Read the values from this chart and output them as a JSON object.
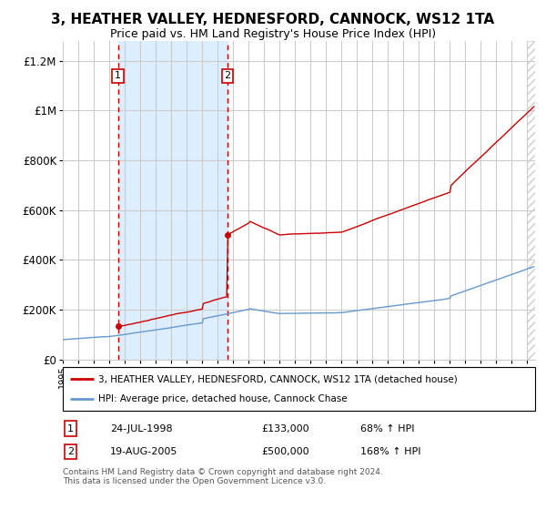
{
  "title": "3, HEATHER VALLEY, HEDNESFORD, CANNOCK, WS12 1TA",
  "subtitle": "Price paid vs. HM Land Registry's House Price Index (HPI)",
  "red_label": "3, HEATHER VALLEY, HEDNESFORD, CANNOCK, WS12 1TA (detached house)",
  "blue_label": "HPI: Average price, detached house, Cannock Chase",
  "sale1_date": "24-JUL-1998",
  "sale1_price": 133000,
  "sale1_pct": "68% ↑ HPI",
  "sale2_date": "19-AUG-2005",
  "sale2_price": 500000,
  "sale2_pct": "168% ↑ HPI",
  "sale1_year": 1998.56,
  "sale2_year": 2005.64,
  "ylim": [
    0,
    1280000
  ],
  "xlim": [
    1995.0,
    2025.5
  ],
  "footer": "Contains HM Land Registry data © Crown copyright and database right 2024.\nThis data is licensed under the Open Government Licence v3.0.",
  "red_color": "#cc0000",
  "blue_color": "#6699cc",
  "shade_color": "#ddeeff",
  "grid_color": "#cccccc",
  "bg_color": "#ffffff",
  "title_fontsize": 11,
  "subtitle_fontsize": 9
}
